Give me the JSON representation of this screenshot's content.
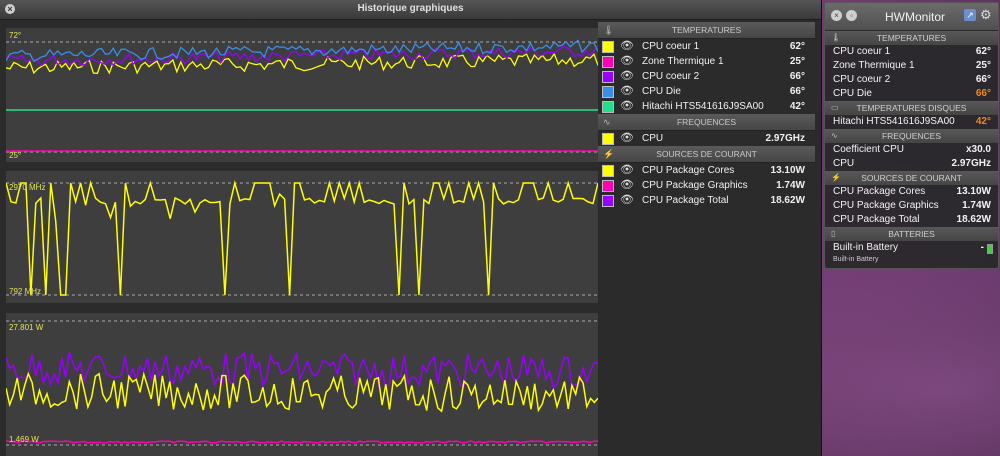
{
  "history_window": {
    "title": "Historique graphiques",
    "graphs": [
      {
        "top_label": "72°",
        "bottom_label": "25°"
      },
      {
        "top_label": "2970 MHz",
        "bottom_label": "792 MHz"
      },
      {
        "top_label": "27.801 W",
        "bottom_label": "1.469 W"
      }
    ],
    "sections": [
      {
        "title": "TEMPERATURES",
        "icon": "thermometer-icon",
        "rows": [
          {
            "color": "#ffff00",
            "name": "CPU coeur 1",
            "value": "62°"
          },
          {
            "color": "#ff00b4",
            "name": "Zone Thermique 1",
            "value": "25°"
          },
          {
            "color": "#9900ff",
            "name": "CPU coeur 2",
            "value": "66°"
          },
          {
            "color": "#3a8ee8",
            "name": "CPU Die",
            "value": "66°"
          },
          {
            "color": "#20e08a",
            "name": "Hitachi HTS541616J9SA00",
            "value": "42°"
          }
        ]
      },
      {
        "title": "FREQUENCES",
        "icon": "pulse-icon",
        "rows": [
          {
            "color": "#ffff00",
            "name": "CPU",
            "value": "2.97GHz"
          }
        ]
      },
      {
        "title": "SOURCES DE COURANT",
        "icon": "lightning-icon",
        "rows": [
          {
            "color": "#ffff00",
            "name": "CPU Package Cores",
            "value": "13.10W"
          },
          {
            "color": "#ff00b4",
            "name": "CPU Package Graphics",
            "value": "1.74W"
          },
          {
            "color": "#9900ff",
            "name": "CPU Package Total",
            "value": "18.62W"
          }
        ]
      }
    ]
  },
  "hwmonitor": {
    "title": "HWMonitor",
    "temperatures": {
      "title": "TEMPERATURES",
      "rows": [
        {
          "name": "CPU coeur 1",
          "value": "62°"
        },
        {
          "name": "Zone Thermique 1",
          "value": "25°"
        },
        {
          "name": "CPU coeur 2",
          "value": "66°"
        },
        {
          "name": "CPU Die",
          "value": "66°"
        }
      ]
    },
    "disk_temperatures": {
      "title": "TEMPERATURES DISQUES",
      "rows": [
        {
          "name": "Hitachi HTS541616J9SA00",
          "value": "42°"
        }
      ]
    },
    "frequencies": {
      "title": "FREQUENCES",
      "rows": [
        {
          "name": "Coefficient CPU",
          "value": "x30.0"
        },
        {
          "name": "CPU",
          "value": "2.97GHz"
        }
      ]
    },
    "power": {
      "title": "SOURCES DE COURANT",
      "rows": [
        {
          "name": "CPU Package Cores",
          "value": "13.10W"
        },
        {
          "name": "CPU Package Graphics",
          "value": "1.74W"
        },
        {
          "name": "CPU Package Total",
          "value": "18.62W"
        }
      ]
    },
    "batteries": {
      "title": "BATTERIES",
      "rows": [
        {
          "name": "Built-in Battery",
          "value": "-",
          "sub": "Built-in Battery"
        }
      ]
    },
    "colors": {
      "hot_value": "#f08a1e"
    }
  }
}
